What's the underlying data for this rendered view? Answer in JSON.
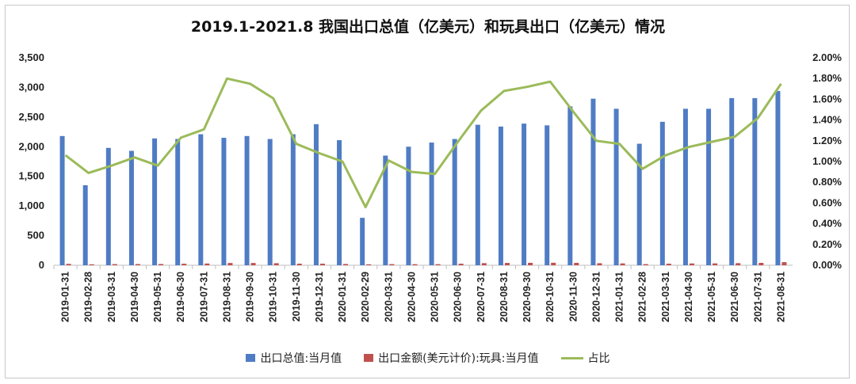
{
  "title": "2019.1-2021.8 我国出口总值（亿美元）和玩具出口（亿美元）情况",
  "colors": {
    "bar1": "#4f7cc4",
    "bar2": "#c0504d",
    "line": "#9bbb59"
  },
  "chart_data": {
    "type": "bar",
    "categories": [
      "2019-01-31",
      "2019-02-28",
      "2019-03-31",
      "2019-04-30",
      "2019-05-31",
      "2019-06-30",
      "2019-07-31",
      "2019-08-31",
      "2019-09-30",
      "2019-10-31",
      "2019-11-30",
      "2019-12-31",
      "2020-01-31",
      "2020-02-29",
      "2020-03-31",
      "2020-04-30",
      "2020-05-31",
      "2020-06-30",
      "2020-07-31",
      "2020-08-31",
      "2020-09-30",
      "2020-10-31",
      "2020-11-30",
      "2020-12-31",
      "2021-01-31",
      "2021-02-28",
      "2021-03-31",
      "2021-04-30",
      "2021-05-31",
      "2021-06-30",
      "2021-07-31",
      "2021-08-31"
    ],
    "series": [
      {
        "name": "出口总值:当月值",
        "axis": "left",
        "type": "bar",
        "values": [
          2180,
          1350,
          1980,
          1930,
          2140,
          2130,
          2210,
          2150,
          2180,
          2130,
          2210,
          2380,
          2110,
          800,
          1850,
          2000,
          2070,
          2130,
          2370,
          2340,
          2390,
          2360,
          2680,
          2810,
          2640,
          2050,
          2420,
          2640,
          2640,
          2820,
          2820,
          2940
        ]
      },
      {
        "name": "出口金额(美元计价):玩具:当月值",
        "axis": "left",
        "type": "bar",
        "values": [
          23,
          12,
          19,
          20,
          21,
          26,
          29,
          38,
          38,
          34,
          26,
          26,
          21,
          4.5,
          19,
          18,
          18,
          26,
          35,
          39,
          41,
          42,
          40,
          34,
          31,
          19,
          26,
          30,
          31,
          35,
          40,
          52
        ]
      },
      {
        "name": "占比",
        "axis": "right",
        "type": "line",
        "values": [
          1.06,
          0.89,
          0.96,
          1.04,
          0.96,
          1.23,
          1.31,
          1.8,
          1.75,
          1.61,
          1.17,
          1.08,
          1.0,
          0.56,
          1.01,
          0.9,
          0.88,
          1.19,
          1.49,
          1.68,
          1.72,
          1.77,
          1.48,
          1.2,
          1.17,
          0.93,
          1.06,
          1.14,
          1.19,
          1.24,
          1.42,
          1.75
        ]
      }
    ],
    "y_left": {
      "min": 0,
      "max": 3500,
      "ticks": [
        "0",
        "500",
        "1,000",
        "1,500",
        "2,000",
        "2,500",
        "3,000",
        "3,500"
      ]
    },
    "y_right": {
      "min": 0,
      "max": 2.0,
      "ticks": [
        "0.00%",
        "0.20%",
        "0.40%",
        "0.60%",
        "0.80%",
        "1.00%",
        "1.20%",
        "1.40%",
        "1.60%",
        "1.80%",
        "2.00%"
      ]
    },
    "grid": false,
    "legend_position": "bottom"
  }
}
